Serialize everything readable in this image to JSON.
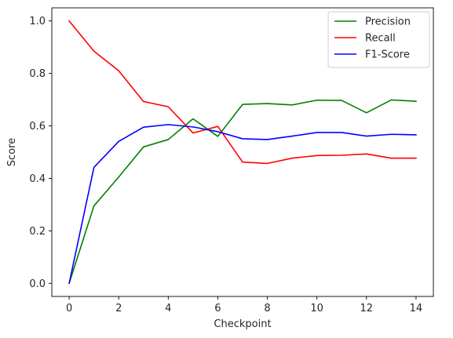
{
  "chart_data": {
    "type": "line",
    "xlabel": "Checkpoint",
    "ylabel": "Score",
    "x": [
      0,
      1,
      2,
      3,
      4,
      5,
      6,
      7,
      8,
      9,
      10,
      11,
      12,
      13,
      14
    ],
    "xlim": [
      -0.7,
      14.7
    ],
    "ylim": [
      -0.05,
      1.05
    ],
    "xticks": [
      0,
      2,
      4,
      6,
      8,
      10,
      12,
      14
    ],
    "xtick_labels": [
      "0",
      "2",
      "4",
      "6",
      "8",
      "10",
      "12",
      "14"
    ],
    "yticks": [
      0.0,
      0.2,
      0.4,
      0.6,
      0.8,
      1.0
    ],
    "ytick_labels": [
      "0.0",
      "0.2",
      "0.4",
      "0.6",
      "0.8",
      "1.0"
    ],
    "grid": false,
    "legend_position": "top-right",
    "series": [
      {
        "name": "Precision",
        "color": "#008000",
        "values": [
          0.0,
          0.295,
          0.405,
          0.52,
          0.548,
          0.627,
          0.56,
          0.682,
          0.685,
          0.68,
          0.698,
          0.697,
          0.65,
          0.699,
          0.694
        ]
      },
      {
        "name": "Recall",
        "color": "#ff0000",
        "values": [
          1.0,
          0.885,
          0.81,
          0.693,
          0.673,
          0.573,
          0.598,
          0.462,
          0.457,
          0.477,
          0.487,
          0.488,
          0.493,
          0.477,
          0.477
        ]
      },
      {
        "name": "F1-Score",
        "color": "#0000ff",
        "values": [
          0.0,
          0.442,
          0.541,
          0.595,
          0.605,
          0.596,
          0.578,
          0.551,
          0.548,
          0.561,
          0.575,
          0.575,
          0.561,
          0.568,
          0.566
        ]
      }
    ]
  }
}
